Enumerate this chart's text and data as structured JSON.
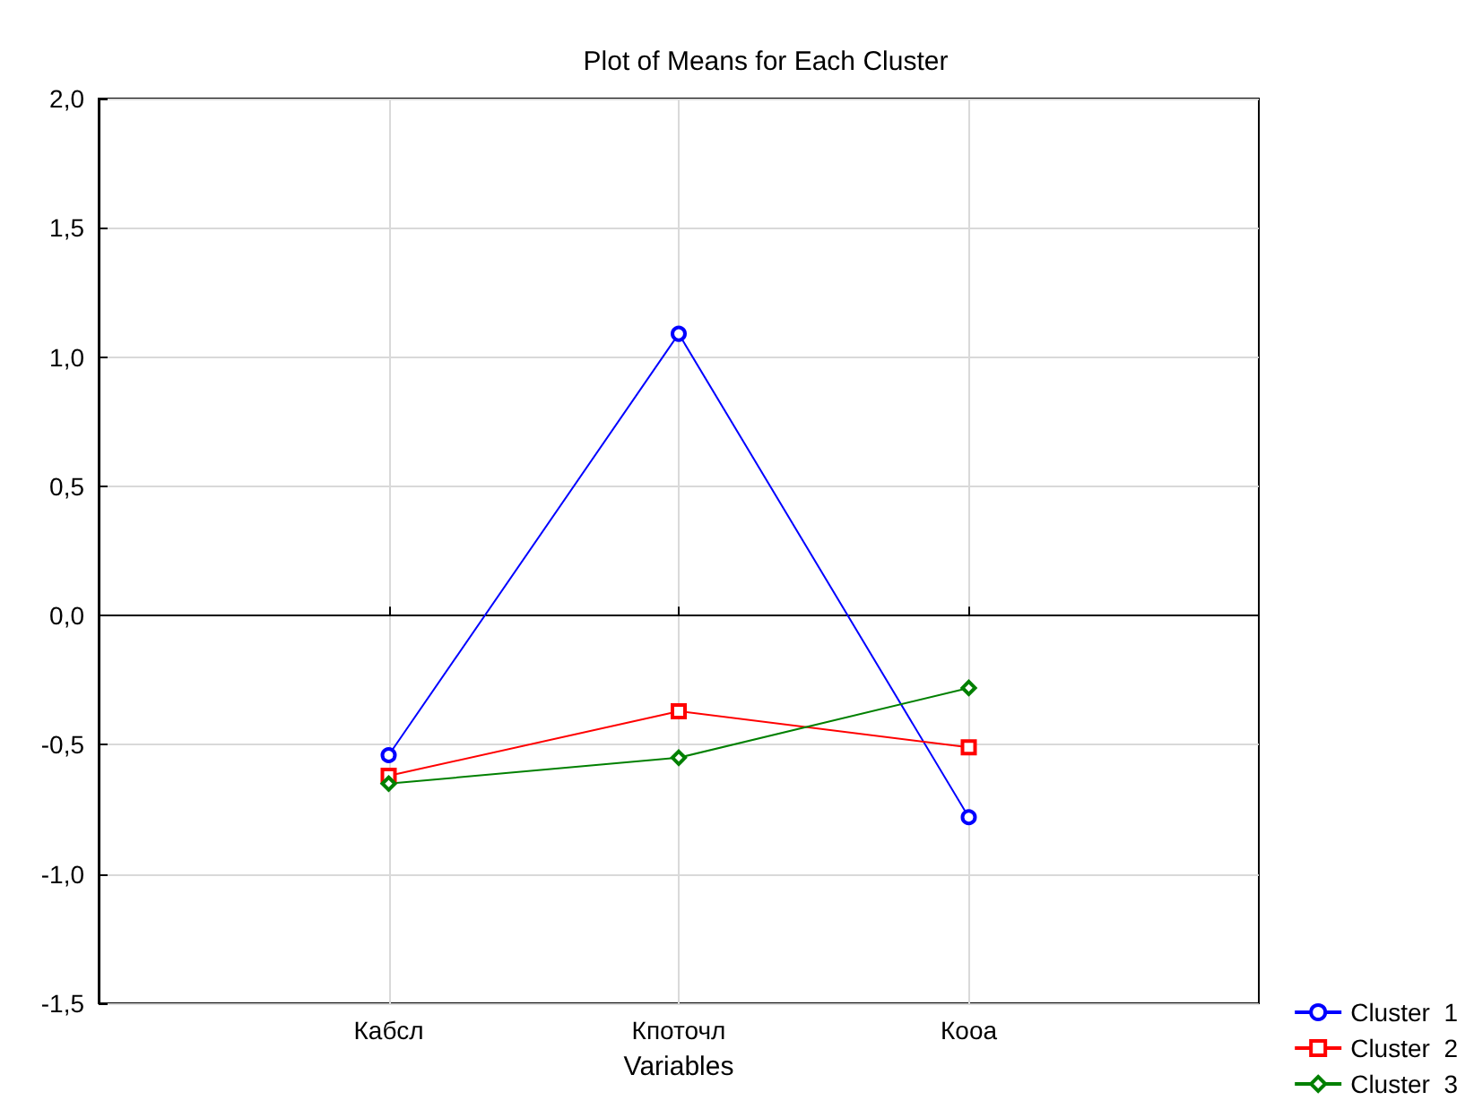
{
  "chart_data": {
    "type": "line",
    "title": "Plot of Means for Each Cluster",
    "xlabel": "Variables",
    "categories": [
      "Кабсл",
      "Кпоточл",
      "Кооа"
    ],
    "series": [
      {
        "name": "Cluster  1",
        "color": "#0000ff",
        "marker": "circle",
        "values": [
          -0.54,
          1.09,
          -0.78
        ]
      },
      {
        "name": "Cluster  2",
        "color": "#ff0000",
        "marker": "square",
        "values": [
          -0.62,
          -0.37,
          -0.51
        ]
      },
      {
        "name": "Cluster  3",
        "color": "#008000",
        "marker": "diamond",
        "values": [
          -0.65,
          -0.55,
          -0.28
        ]
      }
    ],
    "ylim": [
      -1.5,
      2.0
    ],
    "yticks": [
      {
        "value": -1.5,
        "label": "-1,5"
      },
      {
        "value": -1.0,
        "label": "-1,0"
      },
      {
        "value": -0.5,
        "label": "-0,5"
      },
      {
        "value": 0,
        "label": "0,0"
      },
      {
        "value": 0.5,
        "label": "0,5"
      },
      {
        "value": 1.0,
        "label": "1,0"
      },
      {
        "value": 1.5,
        "label": "1,5"
      },
      {
        "value": 2.0,
        "label": "2,0"
      }
    ],
    "grid": true,
    "legend": "bottom right",
    "line_style": "solid"
  }
}
